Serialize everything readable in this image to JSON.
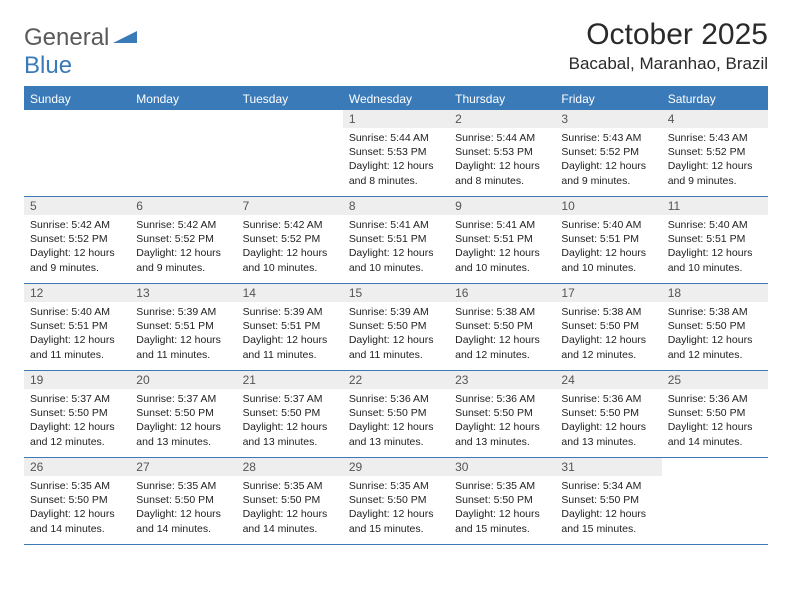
{
  "brand": {
    "part1": "General",
    "part2": "Blue"
  },
  "title": "October 2025",
  "location": "Bacabal, Maranhao, Brazil",
  "colors": {
    "header_bg": "#3a7ab8",
    "date_bg": "#eeeeee",
    "page_bg": "#ffffff",
    "text": "#222222"
  },
  "day_names": [
    "Sunday",
    "Monday",
    "Tuesday",
    "Wednesday",
    "Thursday",
    "Friday",
    "Saturday"
  ],
  "weeks": [
    [
      null,
      null,
      null,
      {
        "d": "1",
        "sr": "5:44 AM",
        "ss": "5:53 PM",
        "dl": "12 hours and 8 minutes."
      },
      {
        "d": "2",
        "sr": "5:44 AM",
        "ss": "5:53 PM",
        "dl": "12 hours and 8 minutes."
      },
      {
        "d": "3",
        "sr": "5:43 AM",
        "ss": "5:52 PM",
        "dl": "12 hours and 9 minutes."
      },
      {
        "d": "4",
        "sr": "5:43 AM",
        "ss": "5:52 PM",
        "dl": "12 hours and 9 minutes."
      }
    ],
    [
      {
        "d": "5",
        "sr": "5:42 AM",
        "ss": "5:52 PM",
        "dl": "12 hours and 9 minutes."
      },
      {
        "d": "6",
        "sr": "5:42 AM",
        "ss": "5:52 PM",
        "dl": "12 hours and 9 minutes."
      },
      {
        "d": "7",
        "sr": "5:42 AM",
        "ss": "5:52 PM",
        "dl": "12 hours and 10 minutes."
      },
      {
        "d": "8",
        "sr": "5:41 AM",
        "ss": "5:51 PM",
        "dl": "12 hours and 10 minutes."
      },
      {
        "d": "9",
        "sr": "5:41 AM",
        "ss": "5:51 PM",
        "dl": "12 hours and 10 minutes."
      },
      {
        "d": "10",
        "sr": "5:40 AM",
        "ss": "5:51 PM",
        "dl": "12 hours and 10 minutes."
      },
      {
        "d": "11",
        "sr": "5:40 AM",
        "ss": "5:51 PM",
        "dl": "12 hours and 10 minutes."
      }
    ],
    [
      {
        "d": "12",
        "sr": "5:40 AM",
        "ss": "5:51 PM",
        "dl": "12 hours and 11 minutes."
      },
      {
        "d": "13",
        "sr": "5:39 AM",
        "ss": "5:51 PM",
        "dl": "12 hours and 11 minutes."
      },
      {
        "d": "14",
        "sr": "5:39 AM",
        "ss": "5:51 PM",
        "dl": "12 hours and 11 minutes."
      },
      {
        "d": "15",
        "sr": "5:39 AM",
        "ss": "5:50 PM",
        "dl": "12 hours and 11 minutes."
      },
      {
        "d": "16",
        "sr": "5:38 AM",
        "ss": "5:50 PM",
        "dl": "12 hours and 12 minutes."
      },
      {
        "d": "17",
        "sr": "5:38 AM",
        "ss": "5:50 PM",
        "dl": "12 hours and 12 minutes."
      },
      {
        "d": "18",
        "sr": "5:38 AM",
        "ss": "5:50 PM",
        "dl": "12 hours and 12 minutes."
      }
    ],
    [
      {
        "d": "19",
        "sr": "5:37 AM",
        "ss": "5:50 PM",
        "dl": "12 hours and 12 minutes."
      },
      {
        "d": "20",
        "sr": "5:37 AM",
        "ss": "5:50 PM",
        "dl": "12 hours and 13 minutes."
      },
      {
        "d": "21",
        "sr": "5:37 AM",
        "ss": "5:50 PM",
        "dl": "12 hours and 13 minutes."
      },
      {
        "d": "22",
        "sr": "5:36 AM",
        "ss": "5:50 PM",
        "dl": "12 hours and 13 minutes."
      },
      {
        "d": "23",
        "sr": "5:36 AM",
        "ss": "5:50 PM",
        "dl": "12 hours and 13 minutes."
      },
      {
        "d": "24",
        "sr": "5:36 AM",
        "ss": "5:50 PM",
        "dl": "12 hours and 13 minutes."
      },
      {
        "d": "25",
        "sr": "5:36 AM",
        "ss": "5:50 PM",
        "dl": "12 hours and 14 minutes."
      }
    ],
    [
      {
        "d": "26",
        "sr": "5:35 AM",
        "ss": "5:50 PM",
        "dl": "12 hours and 14 minutes."
      },
      {
        "d": "27",
        "sr": "5:35 AM",
        "ss": "5:50 PM",
        "dl": "12 hours and 14 minutes."
      },
      {
        "d": "28",
        "sr": "5:35 AM",
        "ss": "5:50 PM",
        "dl": "12 hours and 14 minutes."
      },
      {
        "d": "29",
        "sr": "5:35 AM",
        "ss": "5:50 PM",
        "dl": "12 hours and 15 minutes."
      },
      {
        "d": "30",
        "sr": "5:35 AM",
        "ss": "5:50 PM",
        "dl": "12 hours and 15 minutes."
      },
      {
        "d": "31",
        "sr": "5:34 AM",
        "ss": "5:50 PM",
        "dl": "12 hours and 15 minutes."
      },
      null
    ]
  ],
  "labels": {
    "sunrise": "Sunrise:",
    "sunset": "Sunset:",
    "daylight": "Daylight:"
  }
}
